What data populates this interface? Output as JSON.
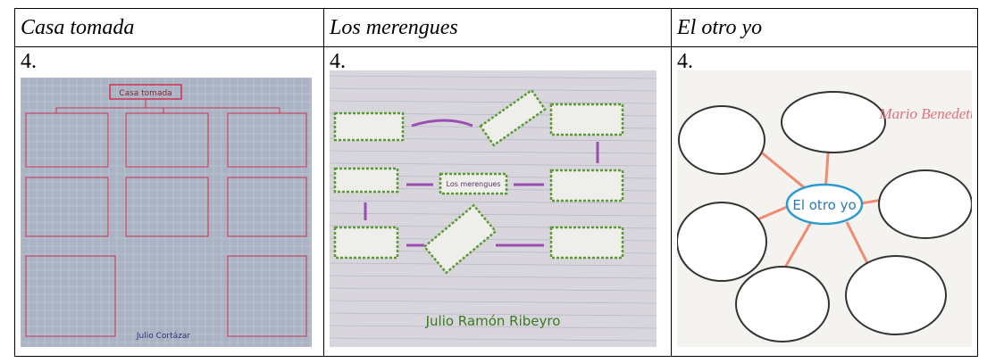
{
  "table": {
    "headers": [
      "Casa tomada",
      "Los merengues",
      "El otro yo"
    ],
    "rows": [
      [
        "4.",
        "4.",
        "4."
      ]
    ]
  },
  "images": [
    {
      "title": "Casa tomada",
      "author": "Julio Cortázar"
    },
    {
      "author": "Julio Ramón Ribeyro",
      "boxes": [
        "Los merengues"
      ]
    },
    {
      "author": "Mario Benedetti",
      "center": "El otro yo"
    }
  ]
}
